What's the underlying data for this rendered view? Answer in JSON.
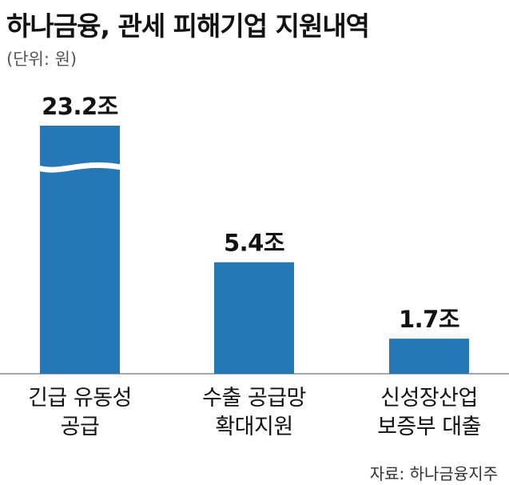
{
  "title": "하나금융, 관세 피해기업 지원내역",
  "unit": "(단위: 원)",
  "source": "자료: 하나금융지주",
  "chart_data": {
    "type": "bar",
    "title": "하나금융, 관세 피해기업 지원내역",
    "ylabel": "(단위: 원)",
    "categories": [
      [
        "긴급 유동성",
        "공급"
      ],
      [
        "수출 공급망",
        "확대지원"
      ],
      [
        "신성장산업",
        "보증부 대출"
      ]
    ],
    "values": [
      23.2,
      5.4,
      1.7
    ],
    "value_labels": [
      "23.2조",
      "5.4조",
      "1.7조"
    ],
    "axis_break_on": [
      0
    ],
    "bar_color": "#2577b5",
    "grid": false,
    "legend": "none"
  }
}
